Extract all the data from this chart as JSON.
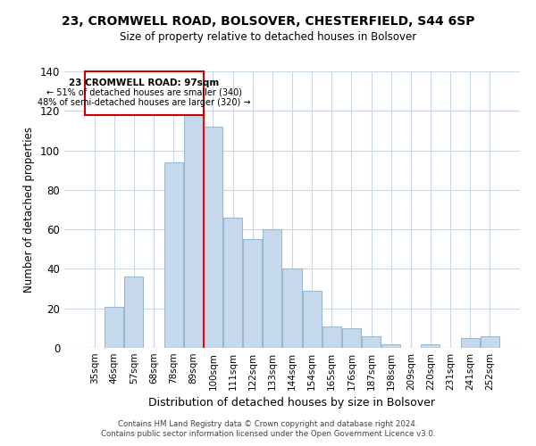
{
  "title": "23, CROMWELL ROAD, BOLSOVER, CHESTERFIELD, S44 6SP",
  "subtitle": "Size of property relative to detached houses in Bolsover",
  "xlabel": "Distribution of detached houses by size in Bolsover",
  "ylabel": "Number of detached properties",
  "bar_labels": [
    "35sqm",
    "46sqm",
    "57sqm",
    "68sqm",
    "78sqm",
    "89sqm",
    "100sqm",
    "111sqm",
    "122sqm",
    "133sqm",
    "144sqm",
    "154sqm",
    "165sqm",
    "176sqm",
    "187sqm",
    "198sqm",
    "209sqm",
    "220sqm",
    "231sqm",
    "241sqm",
    "252sqm"
  ],
  "bar_values": [
    0,
    21,
    36,
    0,
    94,
    118,
    112,
    66,
    55,
    60,
    40,
    29,
    11,
    10,
    6,
    2,
    0,
    2,
    0,
    5,
    6
  ],
  "bar_color": "#c6d9ec",
  "bar_edge_color": "#9ab8d0",
  "vline_x_idx": 6,
  "vline_color": "red",
  "ylim": [
    0,
    140
  ],
  "yticks": [
    0,
    20,
    40,
    60,
    80,
    100,
    120,
    140
  ],
  "annotation_title": "23 CROMWELL ROAD: 97sqm",
  "annotation_line1": "← 51% of detached houses are smaller (340)",
  "annotation_line2": "48% of semi-detached houses are larger (320) →",
  "footer1": "Contains HM Land Registry data © Crown copyright and database right 2024.",
  "footer2": "Contains public sector information licensed under the Open Government Licence v3.0.",
  "background_color": "#ffffff",
  "grid_color": "#c8d8e8"
}
